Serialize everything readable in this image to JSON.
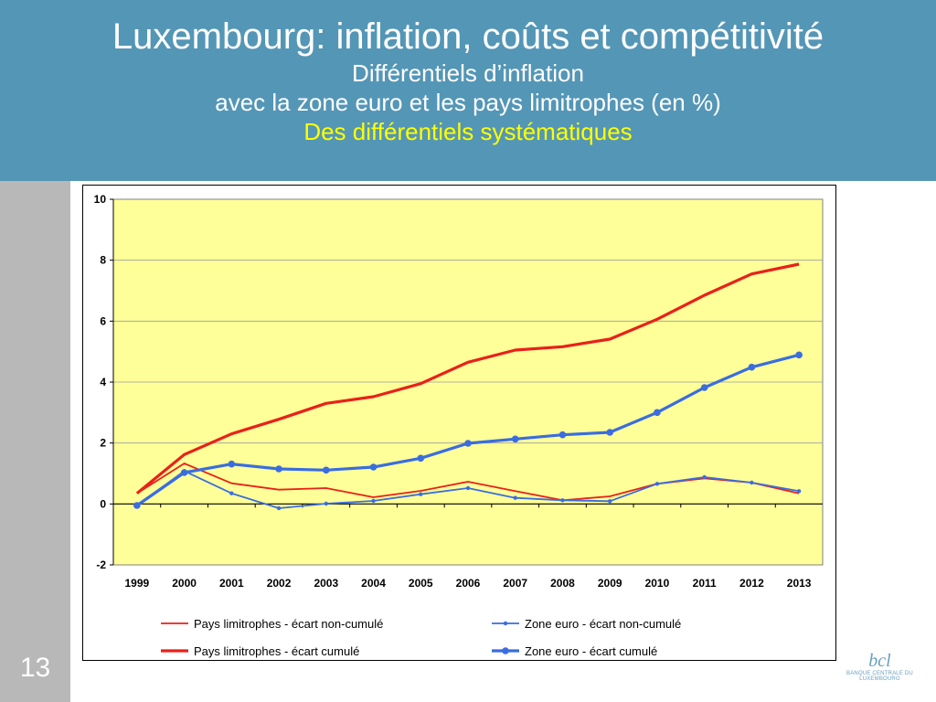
{
  "header": {
    "title": "Luxembourg: inflation, coûts et compétitivité",
    "subtitle1": "Différentiels d’inflation",
    "subtitle2": "avec la zone euro et les pays limitrophes (en %)",
    "highlight": "Des différentiels systématiques"
  },
  "slide": {
    "number": "13"
  },
  "logo": {
    "text": "BANQUE CENTRALE DU LUXEMBOURG",
    "mark": "bcl"
  },
  "colors": {
    "header_bg": "#5496b6",
    "plot_bg": "#ffff99",
    "red": "#e8211a",
    "blue": "#3a6de0",
    "highlight": "#ffff00"
  },
  "chart_data": {
    "type": "line",
    "title": "",
    "xlabel": "",
    "ylabel": "",
    "categories": [
      "1999",
      "2000",
      "2001",
      "2002",
      "2003",
      "2004",
      "2005",
      "2006",
      "2007",
      "2008",
      "2009",
      "2010",
      "2011",
      "2012",
      "2013"
    ],
    "ylim": [
      -2,
      10
    ],
    "yticks": [
      "10",
      "8",
      "6",
      "4",
      "2",
      "0",
      "-2"
    ],
    "grid": true,
    "legend_position": "bottom",
    "series": [
      {
        "name": "Pays limitrophes - écart non-cumulé",
        "color": "#e8211a",
        "style": "thin",
        "marker": false,
        "values": [
          0.35,
          1.33,
          0.68,
          0.47,
          0.52,
          0.22,
          0.43,
          0.73,
          0.42,
          0.12,
          0.25,
          0.66,
          0.84,
          0.7,
          0.35
        ]
      },
      {
        "name": "Zone euro - écart non-cumulé",
        "color": "#3a6de0",
        "style": "thin",
        "marker": true,
        "values": [
          -0.05,
          1.08,
          0.35,
          -0.14,
          0.01,
          0.1,
          0.32,
          0.52,
          0.2,
          0.12,
          0.09,
          0.66,
          0.88,
          0.7,
          0.42
        ]
      },
      {
        "name": "Pays limitrophes - écart cumulé",
        "color": "#e8211a",
        "style": "thick",
        "marker": false,
        "values": [
          0.35,
          1.62,
          2.3,
          2.78,
          3.3,
          3.52,
          3.95,
          4.65,
          5.05,
          5.16,
          5.41,
          6.06,
          6.85,
          7.55,
          7.87
        ]
      },
      {
        "name": "Zone euro - écart cumulé",
        "color": "#3a6de0",
        "style": "thick",
        "marker": true,
        "values": [
          -0.05,
          1.03,
          1.31,
          1.15,
          1.11,
          1.21,
          1.5,
          1.99,
          2.13,
          2.27,
          2.35,
          3.0,
          3.82,
          4.49,
          4.89
        ]
      }
    ]
  }
}
